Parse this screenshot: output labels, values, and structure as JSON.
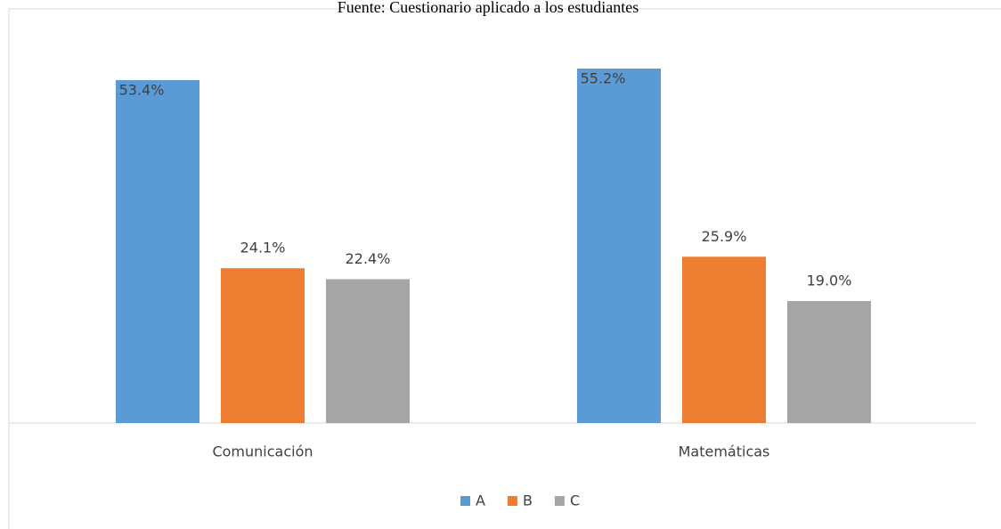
{
  "chart_data": {
    "type": "bar",
    "title": "Fuente: Cuestionario aplicado a los estudiantes",
    "categories": [
      "Comunicación",
      "Matemáticas"
    ],
    "series": [
      {
        "name": "A",
        "color": "#5b9bd5",
        "values": [
          53.4,
          55.2
        ],
        "value_labels": [
          "53.4%",
          "55.2%"
        ]
      },
      {
        "name": "B",
        "color": "#ed7d31",
        "values": [
          24.1,
          25.9
        ],
        "value_labels": [
          "24.1%",
          "25.9%"
        ]
      },
      {
        "name": "C",
        "color": "#a5a5a5",
        "values": [
          22.4,
          19.0
        ],
        "value_labels": [
          "22.4%",
          "19.0%"
        ]
      }
    ],
    "legend": "bottom"
  }
}
